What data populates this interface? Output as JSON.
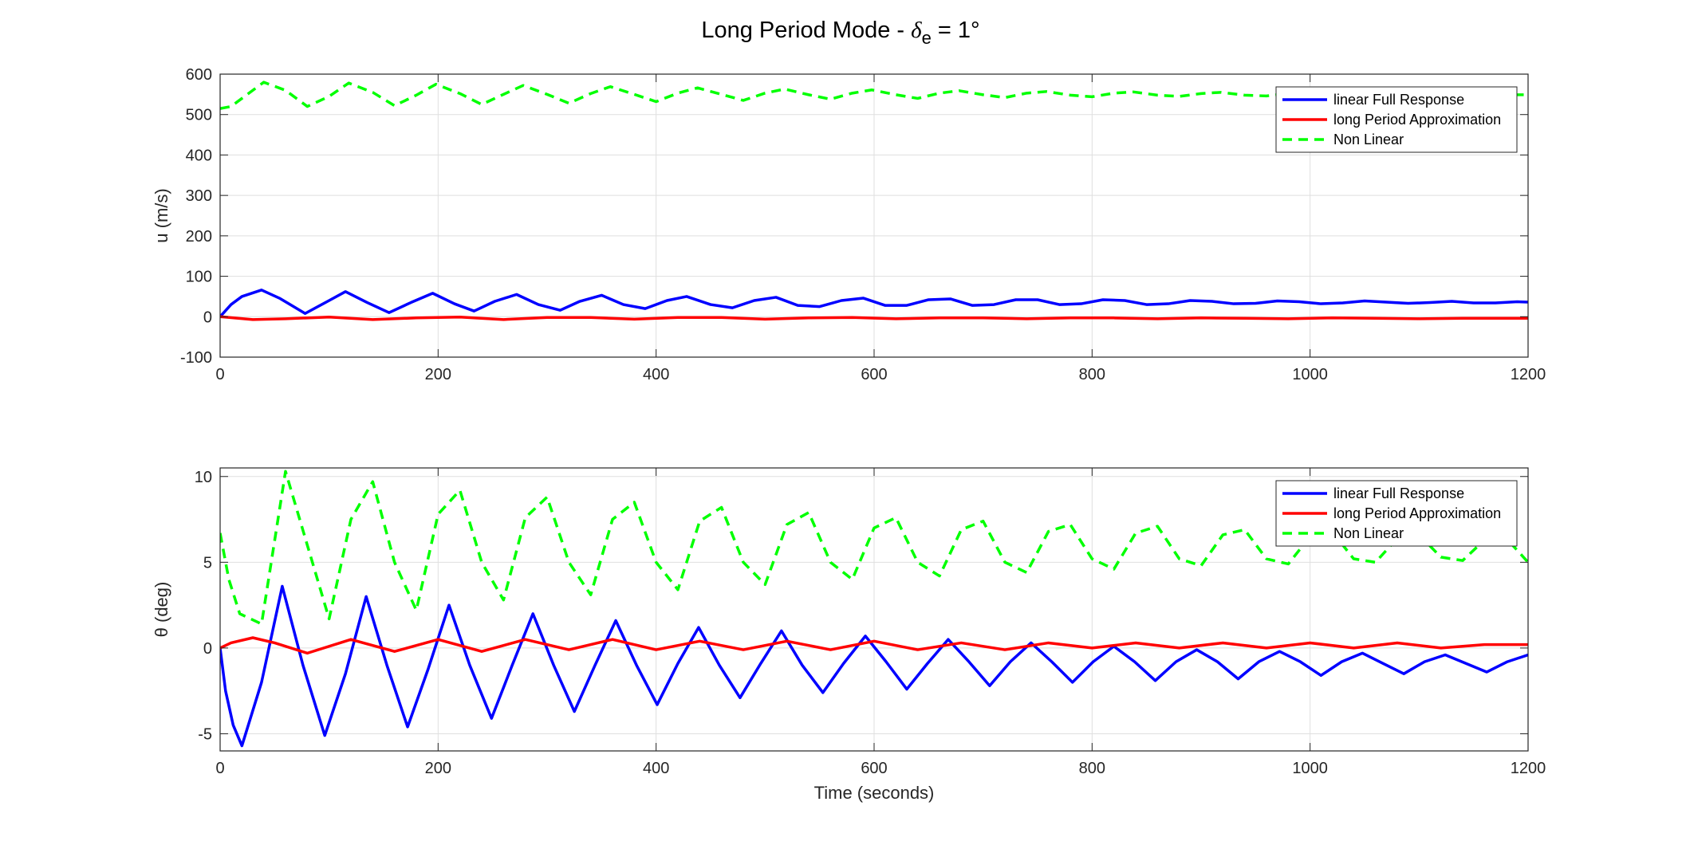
{
  "figure": {
    "title_main": "Long Period Mode - ",
    "title_symbol": "δ",
    "title_subscript": "e",
    "title_tail": " = 1°"
  },
  "chart_data": [
    {
      "type": "line",
      "title": "",
      "xlabel": "",
      "ylabel": "u (m/s)",
      "xlim": [
        0,
        1200
      ],
      "ylim": [
        -100,
        600
      ],
      "xticks": [
        0,
        200,
        400,
        600,
        800,
        1000,
        1200
      ],
      "yticks": [
        -100,
        0,
        100,
        200,
        300,
        400,
        500,
        600
      ],
      "xtick_labels": [
        "0",
        "200",
        "400",
        "600",
        "800",
        "1000",
        "1200"
      ],
      "ytick_labels": [
        "-100",
        "0",
        "100",
        "200",
        "300",
        "400",
        "500",
        "600"
      ],
      "grid": true,
      "legend_position": "top-right",
      "series": [
        {
          "name": "linear Full Response",
          "color": "#0000ff",
          "style": "solid",
          "x": [
            0,
            10,
            20,
            38,
            55,
            78,
            100,
            115,
            135,
            155,
            175,
            195,
            215,
            233,
            252,
            272,
            292,
            312,
            330,
            350,
            370,
            390,
            410,
            428,
            450,
            470,
            490,
            510,
            530,
            550,
            570,
            590,
            610,
            630,
            650,
            670,
            690,
            710,
            730,
            750,
            770,
            790,
            810,
            830,
            850,
            870,
            890,
            910,
            930,
            950,
            970,
            990,
            1010,
            1030,
            1050,
            1070,
            1090,
            1110,
            1130,
            1150,
            1170,
            1190,
            1200
          ],
          "y": [
            0,
            30,
            50,
            66,
            45,
            8,
            40,
            62,
            35,
            10,
            35,
            58,
            32,
            14,
            38,
            55,
            30,
            16,
            38,
            53,
            30,
            20,
            40,
            50,
            30,
            22,
            40,
            48,
            28,
            25,
            40,
            46,
            28,
            28,
            42,
            44,
            28,
            30,
            42,
            42,
            30,
            32,
            42,
            40,
            30,
            32,
            40,
            38,
            32,
            33,
            39,
            37,
            32,
            34,
            39,
            36,
            33,
            35,
            38,
            34,
            34,
            37,
            36
          ]
        },
        {
          "name": "long Period Approximation",
          "color": "#ff0000",
          "style": "solid",
          "x": [
            0,
            30,
            60,
            100,
            140,
            180,
            220,
            260,
            300,
            340,
            380,
            420,
            460,
            500,
            540,
            580,
            620,
            660,
            700,
            740,
            780,
            820,
            860,
            900,
            940,
            980,
            1020,
            1060,
            1100,
            1140,
            1180,
            1200
          ],
          "y": [
            0,
            -7,
            -5,
            -1,
            -7,
            -3,
            -1,
            -7,
            -2,
            -2,
            -6,
            -2,
            -2,
            -6,
            -3,
            -2,
            -5,
            -3,
            -3,
            -5,
            -3,
            -3,
            -5,
            -3,
            -4,
            -5,
            -3,
            -4,
            -5,
            -4,
            -4,
            -4
          ]
        },
        {
          "name": "Non Linear",
          "color": "#00ff00",
          "style": "dashed",
          "x": [
            0,
            10,
            20,
            40,
            60,
            80,
            100,
            118,
            140,
            160,
            180,
            198,
            220,
            240,
            260,
            278,
            300,
            320,
            340,
            358,
            380,
            400,
            420,
            438,
            460,
            480,
            500,
            518,
            540,
            560,
            580,
            598,
            620,
            640,
            660,
            678,
            700,
            720,
            740,
            758,
            780,
            800,
            820,
            838,
            860,
            880,
            900,
            918,
            940,
            960,
            980,
            1000,
            1020,
            1040,
            1060,
            1080,
            1100,
            1120,
            1140,
            1160,
            1180,
            1200
          ],
          "y": [
            515,
            520,
            540,
            580,
            560,
            520,
            545,
            578,
            555,
            522,
            548,
            575,
            552,
            525,
            550,
            572,
            550,
            528,
            552,
            569,
            550,
            532,
            553,
            566,
            550,
            535,
            553,
            563,
            549,
            538,
            553,
            561,
            549,
            540,
            553,
            559,
            549,
            542,
            553,
            557,
            548,
            544,
            553,
            556,
            548,
            545,
            552,
            555,
            548,
            546,
            552,
            554,
            548,
            547,
            551,
            553,
            548,
            547,
            551,
            552,
            549,
            549
          ]
        }
      ]
    },
    {
      "type": "line",
      "title": "",
      "xlabel": "Time (seconds)",
      "ylabel": "θ (deg)",
      "xlim": [
        0,
        1200
      ],
      "ylim": [
        -6,
        10.5
      ],
      "xticks": [
        0,
        200,
        400,
        600,
        800,
        1000,
        1200
      ],
      "yticks": [
        -5,
        0,
        5,
        10
      ],
      "xtick_labels": [
        "0",
        "200",
        "400",
        "600",
        "800",
        "1000",
        "1200"
      ],
      "ytick_labels": [
        "-5",
        "0",
        "5",
        "10"
      ],
      "grid": true,
      "legend_position": "top-right",
      "series": [
        {
          "name": "linear Full Response",
          "color": "#0000ff",
          "style": "solid",
          "x": [
            0,
            5,
            12,
            20,
            38,
            57,
            76,
            96,
            115,
            134,
            153,
            172,
            191,
            210,
            229,
            249,
            268,
            287,
            306,
            325,
            344,
            363,
            382,
            401,
            420,
            439,
            458,
            477,
            496,
            515,
            534,
            553,
            572,
            592,
            611,
            630,
            649,
            668,
            687,
            706,
            725,
            744,
            763,
            782,
            801,
            820,
            839,
            858,
            877,
            896,
            915,
            934,
            953,
            972,
            991,
            1010,
            1029,
            1048,
            1067,
            1086,
            1105,
            1124,
            1143,
            1162,
            1181,
            1200
          ],
          "y": [
            0,
            -2.5,
            -4.5,
            -5.7,
            -2,
            3.6,
            -1,
            -5.1,
            -1.5,
            3.0,
            -1,
            -4.6,
            -1.2,
            2.5,
            -1,
            -4.1,
            -1,
            2.0,
            -1,
            -3.7,
            -1,
            1.6,
            -1,
            -3.3,
            -0.9,
            1.2,
            -1,
            -2.9,
            -0.9,
            1.0,
            -1,
            -2.6,
            -0.9,
            0.7,
            -0.8,
            -2.4,
            -0.9,
            0.5,
            -0.8,
            -2.2,
            -0.8,
            0.3,
            -0.8,
            -2.0,
            -0.8,
            0.1,
            -0.8,
            -1.9,
            -0.8,
            -0.1,
            -0.8,
            -1.8,
            -0.8,
            -0.2,
            -0.8,
            -1.6,
            -0.8,
            -0.3,
            -0.9,
            -1.5,
            -0.8,
            -0.4,
            -0.9,
            -1.4,
            -0.8,
            -0.4
          ]
        },
        {
          "name": "long Period Approximation",
          "color": "#ff0000",
          "style": "solid",
          "x": [
            0,
            10,
            30,
            50,
            80,
            120,
            160,
            200,
            240,
            280,
            320,
            360,
            400,
            440,
            480,
            520,
            560,
            600,
            640,
            680,
            720,
            760,
            800,
            840,
            880,
            920,
            960,
            1000,
            1040,
            1080,
            1120,
            1160,
            1200
          ],
          "y": [
            0,
            0.3,
            0.6,
            0.3,
            -0.3,
            0.5,
            -0.2,
            0.5,
            -0.2,
            0.5,
            -0.1,
            0.5,
            -0.1,
            0.4,
            -0.1,
            0.4,
            -0.1,
            0.4,
            -0.1,
            0.3,
            -0.1,
            0.3,
            0.0,
            0.3,
            0.0,
            0.3,
            0.0,
            0.3,
            0.0,
            0.3,
            0.0,
            0.2,
            0.2
          ]
        },
        {
          "name": "Non Linear",
          "color": "#00ff00",
          "style": "dashed",
          "x": [
            0,
            8,
            18,
            38,
            60,
            80,
            100,
            120,
            140,
            160,
            180,
            200,
            220,
            240,
            260,
            280,
            300,
            320,
            340,
            360,
            380,
            400,
            420,
            440,
            460,
            480,
            500,
            520,
            540,
            560,
            580,
            600,
            620,
            640,
            660,
            680,
            700,
            720,
            740,
            760,
            780,
            800,
            820,
            840,
            860,
            880,
            900,
            920,
            940,
            960,
            980,
            1000,
            1020,
            1040,
            1060,
            1080,
            1100,
            1120,
            1140,
            1160,
            1180,
            1200
          ],
          "y": [
            6.7,
            4.0,
            2.0,
            1.4,
            10.3,
            6.0,
            1.7,
            7.5,
            9.7,
            5.0,
            2.2,
            7.8,
            9.2,
            5.0,
            2.8,
            7.6,
            8.8,
            5.0,
            3.1,
            7.5,
            8.5,
            5.0,
            3.4,
            7.4,
            8.2,
            5.0,
            3.7,
            7.2,
            7.9,
            5.0,
            4.0,
            7.0,
            7.6,
            5.0,
            4.2,
            6.9,
            7.4,
            5.0,
            4.4,
            6.8,
            7.2,
            5.2,
            4.6,
            6.7,
            7.1,
            5.2,
            4.8,
            6.6,
            6.9,
            5.2,
            4.9,
            6.5,
            6.8,
            5.2,
            5.0,
            6.4,
            6.6,
            5.3,
            5.1,
            6.3,
            6.4,
            5.0
          ]
        }
      ]
    }
  ]
}
